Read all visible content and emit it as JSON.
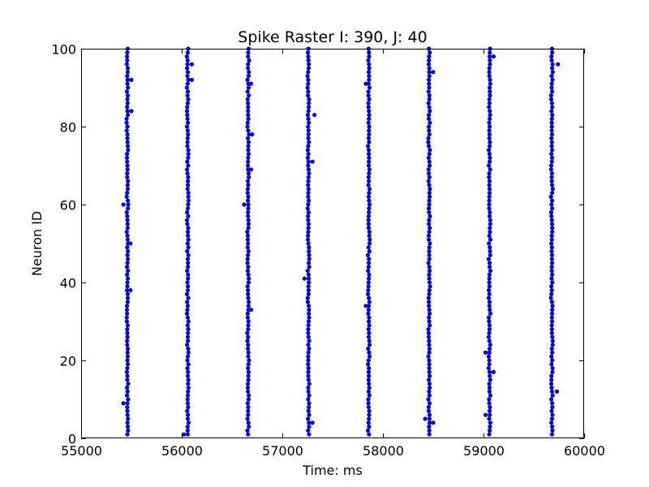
{
  "chart_data": {
    "type": "scatter",
    "title": "Spike Raster I: 390, J: 40",
    "xlabel": "Time: ms",
    "ylabel": "Neuron ID",
    "xlim": [
      55000,
      60000
    ],
    "ylim": [
      0,
      100
    ],
    "xticks": [
      55000,
      56000,
      57000,
      58000,
      59000,
      60000
    ],
    "yticks": [
      0,
      20,
      40,
      60,
      80,
      100
    ],
    "grid": false,
    "marker_color": "#0000ff",
    "neuron_id_range": [
      1,
      100
    ],
    "burst_times_ms": [
      55460,
      56060,
      56660,
      57260,
      57860,
      58460,
      59060,
      59680
    ],
    "outlier_spikes": [
      {
        "x": 55420,
        "y": 60
      },
      {
        "x": 55420,
        "y": 9
      },
      {
        "x": 55500,
        "y": 92
      },
      {
        "x": 55500,
        "y": 84
      },
      {
        "x": 55490,
        "y": 50
      },
      {
        "x": 55490,
        "y": 38
      },
      {
        "x": 56020,
        "y": 1
      },
      {
        "x": 56100,
        "y": 96
      },
      {
        "x": 56100,
        "y": 92
      },
      {
        "x": 56620,
        "y": 60
      },
      {
        "x": 56690,
        "y": 91
      },
      {
        "x": 56690,
        "y": 69
      },
      {
        "x": 56700,
        "y": 78
      },
      {
        "x": 56690,
        "y": 33
      },
      {
        "x": 57220,
        "y": 41
      },
      {
        "x": 57320,
        "y": 83
      },
      {
        "x": 57300,
        "y": 71
      },
      {
        "x": 57300,
        "y": 4
      },
      {
        "x": 57830,
        "y": 91
      },
      {
        "x": 57830,
        "y": 34
      },
      {
        "x": 58420,
        "y": 5
      },
      {
        "x": 58500,
        "y": 4
      },
      {
        "x": 58500,
        "y": 94
      },
      {
        "x": 59020,
        "y": 22
      },
      {
        "x": 59020,
        "y": 6
      },
      {
        "x": 59100,
        "y": 98
      },
      {
        "x": 59100,
        "y": 17
      },
      {
        "x": 59740,
        "y": 96
      },
      {
        "x": 59730,
        "y": 12
      }
    ]
  }
}
